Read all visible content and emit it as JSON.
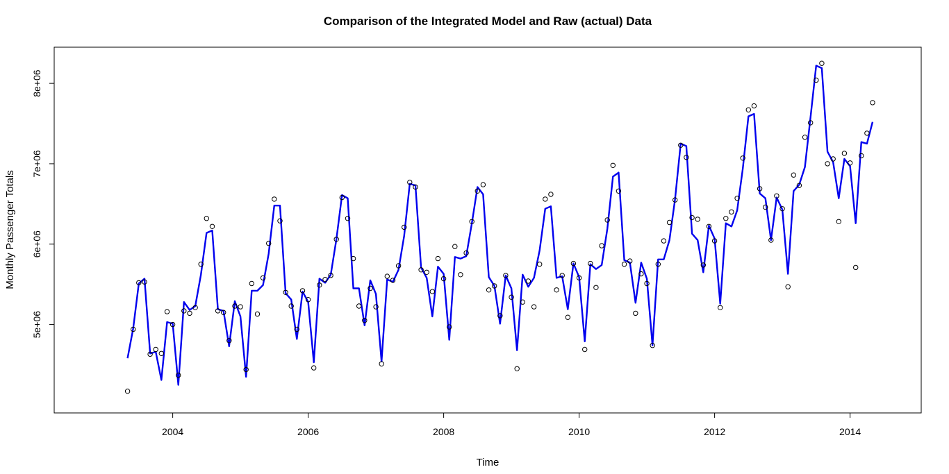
{
  "chart_data": {
    "type": "line",
    "title": "Comparison of the Integrated Model and Raw (actual) Data",
    "xlabel": "Time",
    "ylabel": "Monthly Passenger Totals",
    "x_ticks": [
      2004,
      2006,
      2008,
      2010,
      2012,
      2014
    ],
    "y_ticks": [
      5000000,
      6000000,
      7000000,
      8000000
    ],
    "y_tick_labels": [
      "5e+06",
      "6e+06",
      "7e+06",
      "8e+06"
    ],
    "xlim": [
      2002.25,
      2015.05
    ],
    "ylim": [
      3900000,
      8450000
    ],
    "grid": false,
    "colors": {
      "model": "#0000ee",
      "actual": "#000000"
    },
    "x_start": 2003.333,
    "x_step": 0.08333,
    "series": [
      {
        "values": [
          4580000,
          4950000,
          5510000,
          5570000,
          4640000,
          4660000,
          4310000,
          5030000,
          5010000,
          4250000,
          5280000,
          5180000,
          5230000,
          5620000,
          6140000,
          6170000,
          5190000,
          5170000,
          4730000,
          5290000,
          5100000,
          4350000,
          5420000,
          5420000,
          5490000,
          5880000,
          6480000,
          6480000,
          5390000,
          5310000,
          4820000,
          5410000,
          5280000,
          4530000,
          5570000,
          5520000,
          5620000,
          6060000,
          6610000,
          6570000,
          5450000,
          5450000,
          4990000,
          5550000,
          5380000,
          4540000,
          5560000,
          5530000,
          5680000,
          6100000,
          6750000,
          6730000,
          5710000,
          5580000,
          5100000,
          5720000,
          5630000,
          4810000,
          5840000,
          5820000,
          5850000,
          6260000,
          6710000,
          6620000,
          5590000,
          5480000,
          5010000,
          5610000,
          5450000,
          4680000,
          5620000,
          5470000,
          5580000,
          5920000,
          6440000,
          6470000,
          5580000,
          5600000,
          5190000,
          5760000,
          5590000,
          4790000,
          5750000,
          5690000,
          5740000,
          6190000,
          6840000,
          6890000,
          5800000,
          5770000,
          5270000,
          5770000,
          5570000,
          4740000,
          5810000,
          5810000,
          6050000,
          6560000,
          7250000,
          7220000,
          6130000,
          6050000,
          5650000,
          6230000,
          6070000,
          5260000,
          6260000,
          6220000,
          6420000,
          6940000,
          7590000,
          7620000,
          6630000,
          6570000,
          6050000,
          6580000,
          6430000,
          5630000,
          6660000,
          6740000,
          6960000,
          7580000,
          8220000,
          8190000,
          7150000,
          7020000,
          6570000,
          7060000,
          6970000,
          6260000,
          7270000,
          7250000,
          7520000
        ]
      },
      {
        "values": [
          4170000,
          4940000,
          5520000,
          5530000,
          4630000,
          4690000,
          4640000,
          5160000,
          5000000,
          4370000,
          5170000,
          5140000,
          5210000,
          5750000,
          6320000,
          6220000,
          5170000,
          5150000,
          4800000,
          5230000,
          5220000,
          4440000,
          5510000,
          5130000,
          5580000,
          6010000,
          6560000,
          6290000,
          5400000,
          5230000,
          4940000,
          5420000,
          5310000,
          4460000,
          5490000,
          5560000,
          5610000,
          6060000,
          6580000,
          6320000,
          5820000,
          5230000,
          5050000,
          5450000,
          5220000,
          4510000,
          5600000,
          5550000,
          5730000,
          6210000,
          6770000,
          6710000,
          5680000,
          5650000,
          5410000,
          5820000,
          5570000,
          4970000,
          5970000,
          5620000,
          5890000,
          6280000,
          6660000,
          6740000,
          5430000,
          5480000,
          5110000,
          5610000,
          5340000,
          4450000,
          5280000,
          5540000,
          5220000,
          5750000,
          6560000,
          6620000,
          5430000,
          5610000,
          5090000,
          5760000,
          5580000,
          4690000,
          5760000,
          5460000,
          5980000,
          6300000,
          6980000,
          6660000,
          5750000,
          5790000,
          5140000,
          5630000,
          5510000,
          4740000,
          5750000,
          6040000,
          6270000,
          6550000,
          7230000,
          7080000,
          6330000,
          6310000,
          5740000,
          6220000,
          6040000,
          5210000,
          6320000,
          6400000,
          6570000,
          7070000,
          7670000,
          7720000,
          6690000,
          6460000,
          6050000,
          6600000,
          6440000,
          5470000,
          6860000,
          6730000,
          7330000,
          7510000,
          8040000,
          8250000,
          7000000,
          7060000,
          6280000,
          7130000,
          7010000,
          5710000,
          7100000,
          7380000,
          7760000
        ]
      }
    ]
  }
}
